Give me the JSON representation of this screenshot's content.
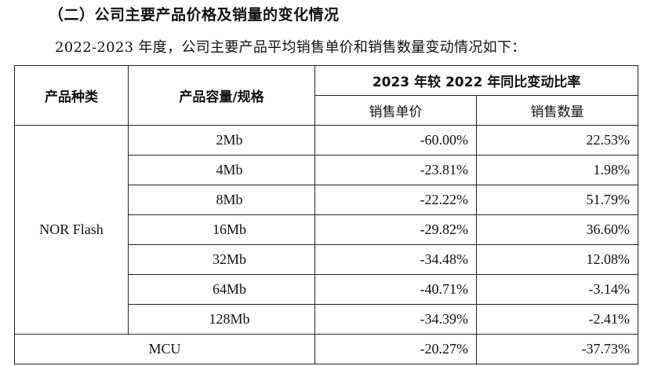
{
  "heading": "（二）公司主要产品价格及销量的变化情况",
  "intro": "2022-2023 年度，公司主要产品平均销售单价和销售数量变动情况如下：",
  "table": {
    "headers": {
      "category": "产品种类",
      "spec": "产品容量/规格",
      "yoy": "2023 年较 2022 年同比变动比率",
      "price": "销售单价",
      "volume": "销售数量"
    },
    "nor_label": "NOR Flash",
    "rows": [
      {
        "spec": "2Mb",
        "price": "-60.00%",
        "volume": "22.53%"
      },
      {
        "spec": "4Mb",
        "price": "-23.81%",
        "volume": "1.98%"
      },
      {
        "spec": "8Mb",
        "price": "-22.22%",
        "volume": "51.79%"
      },
      {
        "spec": "16Mb",
        "price": "-29.82%",
        "volume": "36.60%"
      },
      {
        "spec": "32Mb",
        "price": "-34.48%",
        "volume": "12.08%"
      },
      {
        "spec": "64Mb",
        "price": "-40.71%",
        "volume": "-3.14%"
      },
      {
        "spec": "128Mb",
        "price": "-34.39%",
        "volume": "-2.41%"
      }
    ],
    "mcu": {
      "label": "MCU",
      "price": "-20.27%",
      "volume": "-37.73%"
    }
  }
}
